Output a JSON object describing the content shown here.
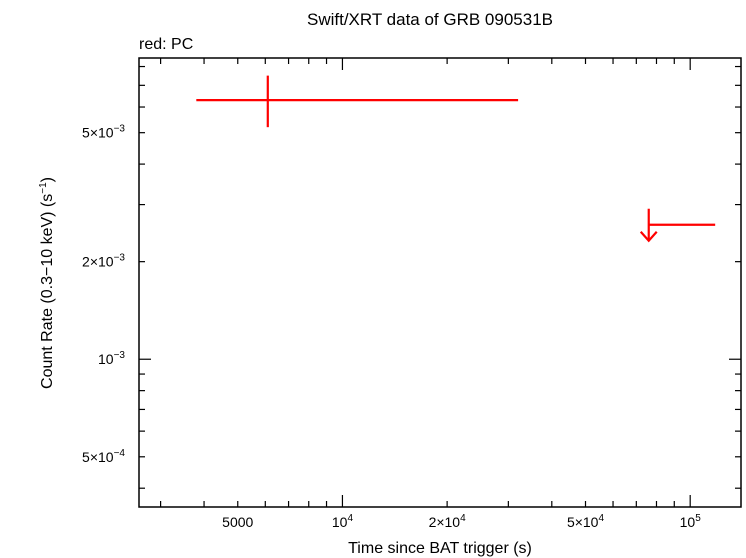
{
  "chart_data": {
    "type": "scatter",
    "title": "Swift/XRT data of GRB 090531B",
    "subtitle": "red: PC",
    "xlabel": "Time since BAT trigger (s)",
    "ylabel_main": "Count Rate (0.3−10 keV) (s",
    "ylabel_sup": "−1",
    "ylabel_tail": ")",
    "x_scale": "log",
    "y_scale": "log",
    "xlim": [
      2600,
      140000
    ],
    "ylim": [
      0.00035,
      0.0085
    ],
    "grid": false,
    "x_ticks": [
      {
        "value": 5000,
        "base": "5000",
        "exp": ""
      },
      {
        "value": 10000,
        "base": "10",
        "exp": "4"
      },
      {
        "value": 20000,
        "base": "2×10",
        "exp": "4"
      },
      {
        "value": 50000,
        "base": "5×10",
        "exp": "4"
      },
      {
        "value": 100000,
        "base": "10",
        "exp": "5"
      }
    ],
    "y_ticks": [
      {
        "value": 0.005,
        "base": "5×10",
        "exp": "−3"
      },
      {
        "value": 0.002,
        "base": "2×10",
        "exp": "−3"
      },
      {
        "value": 0.001,
        "base": "10",
        "exp": "−3"
      },
      {
        "value": 0.0005,
        "base": "5×10",
        "exp": "−4"
      }
    ],
    "series": [
      {
        "name": "PC",
        "color": "#ff0000",
        "points": [
          {
            "x": 6100,
            "xmin": 3800,
            "xmax": 32000,
            "y": 0.0063,
            "ymin": 0.0052,
            "ymax": 0.0075,
            "upper_limit": false
          },
          {
            "x": 76000,
            "xmin": 76000,
            "xmax": 118000,
            "y": 0.0026,
            "upper_limit": true
          }
        ]
      }
    ]
  }
}
